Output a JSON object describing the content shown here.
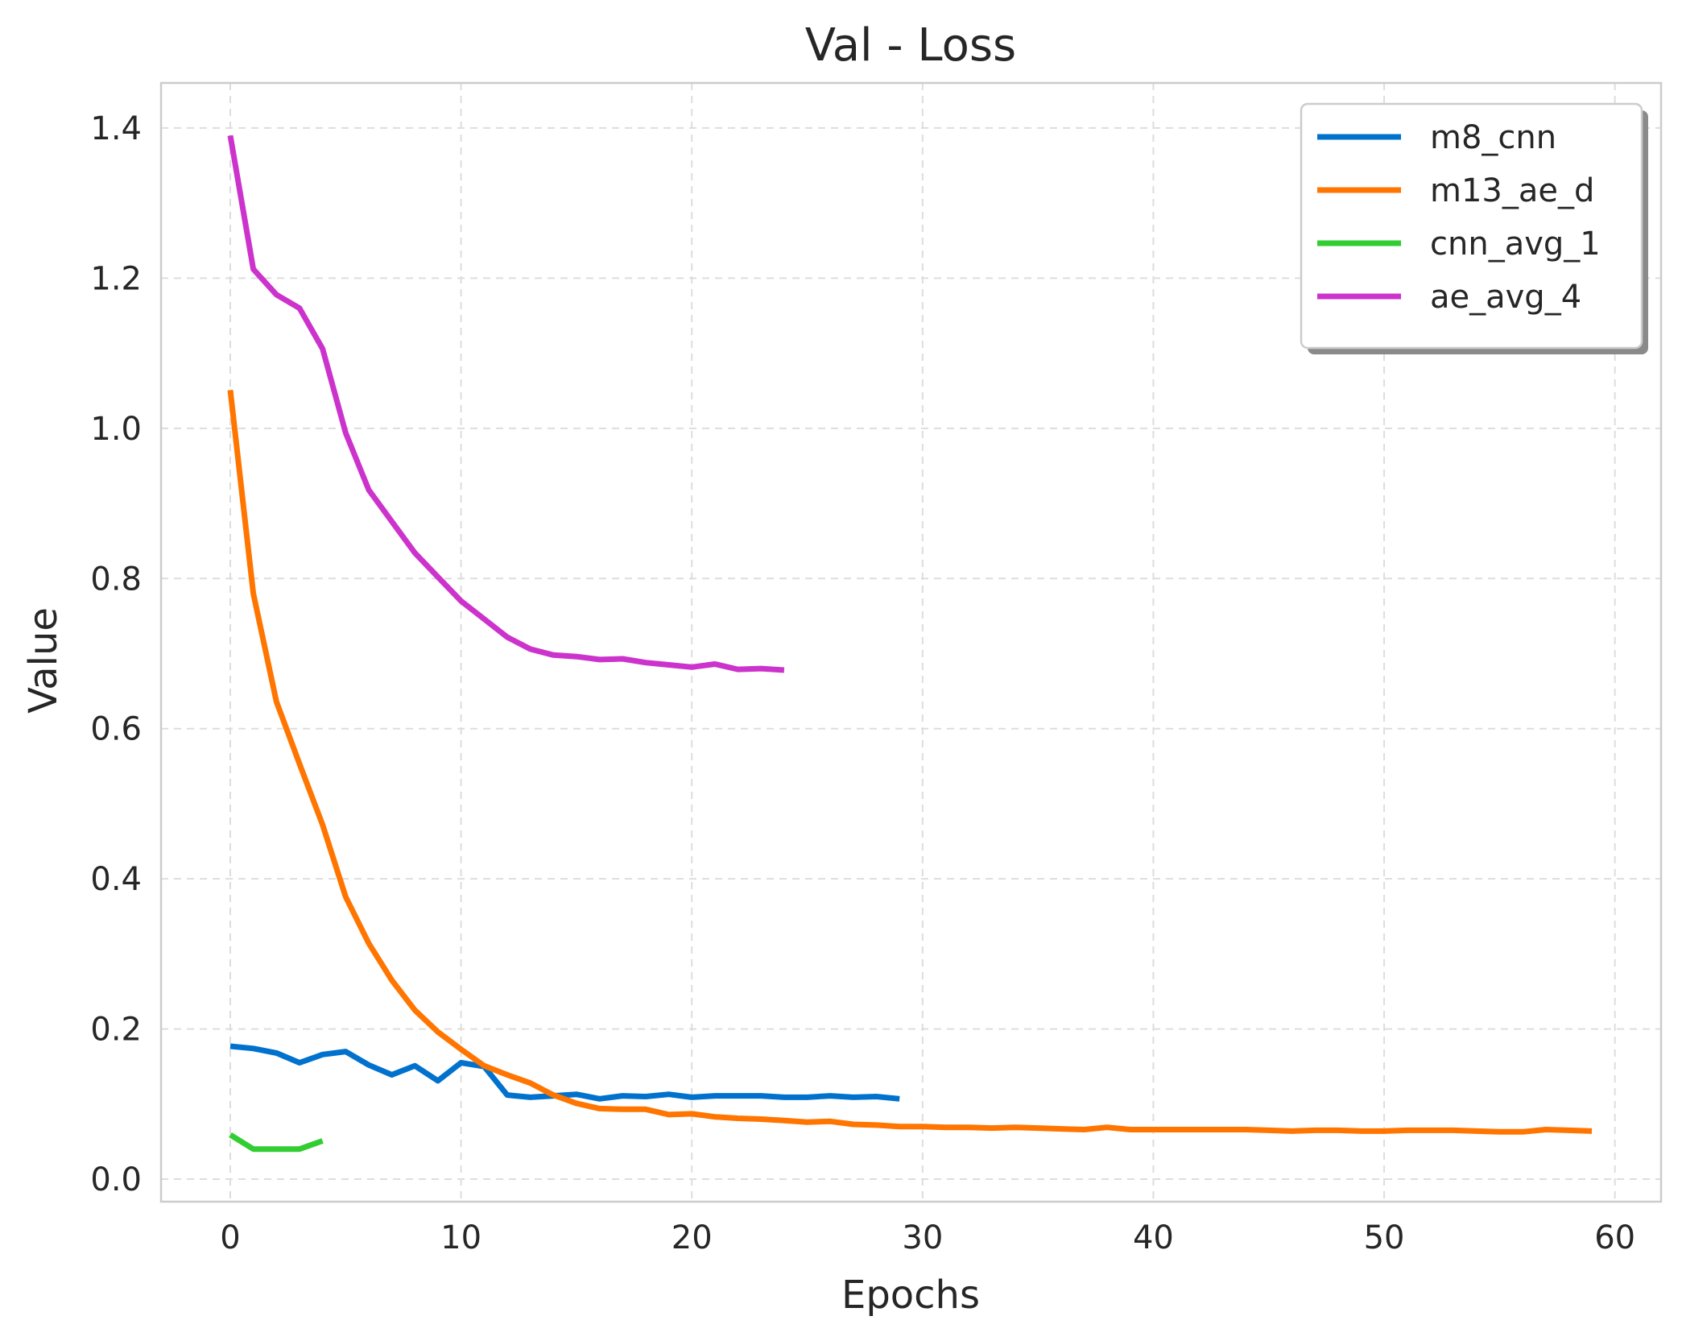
{
  "chart_data": {
    "type": "line",
    "title": "Val - Loss",
    "xlabel": "Epochs",
    "ylabel": "Value",
    "xlim": [
      -3,
      62
    ],
    "ylim": [
      -0.03,
      1.46
    ],
    "xticks": [
      0,
      10,
      20,
      30,
      40,
      50,
      60
    ],
    "yticks": [
      0.0,
      0.2,
      0.4,
      0.6,
      0.8,
      1.0,
      1.2,
      1.4
    ],
    "xtick_labels": [
      "0",
      "10",
      "20",
      "30",
      "40",
      "50",
      "60"
    ],
    "ytick_labels": [
      "0.0",
      "0.2",
      "0.4",
      "0.6",
      "0.8",
      "1.0",
      "1.2",
      "1.4"
    ],
    "grid": true,
    "legend_position": "top-right",
    "series": [
      {
        "name": "m8_cnn",
        "color": "#0072CE",
        "x": [
          0,
          1,
          2,
          3,
          4,
          5,
          6,
          7,
          8,
          9,
          10,
          11,
          12,
          13,
          14,
          15,
          16,
          17,
          18,
          19,
          20,
          21,
          22,
          23,
          24,
          25,
          26,
          27,
          28,
          29
        ],
        "y": [
          0.177,
          0.174,
          0.168,
          0.155,
          0.166,
          0.17,
          0.152,
          0.139,
          0.151,
          0.131,
          0.155,
          0.15,
          0.112,
          0.109,
          0.111,
          0.113,
          0.107,
          0.111,
          0.11,
          0.113,
          0.109,
          0.111,
          0.111,
          0.111,
          0.109,
          0.109,
          0.111,
          0.109,
          0.11,
          0.107
        ]
      },
      {
        "name": "m13_ae_d",
        "color": "#FF7500",
        "x": [
          0,
          1,
          2,
          3,
          4,
          5,
          6,
          7,
          8,
          9,
          10,
          11,
          12,
          13,
          14,
          15,
          16,
          17,
          18,
          19,
          20,
          21,
          22,
          23,
          24,
          25,
          26,
          27,
          28,
          29,
          30,
          31,
          32,
          33,
          34,
          35,
          36,
          37,
          38,
          39,
          40,
          41,
          42,
          43,
          44,
          45,
          46,
          47,
          48,
          49,
          50,
          51,
          52,
          53,
          54,
          55,
          56,
          57,
          58,
          59
        ],
        "y": [
          1.051,
          0.78,
          0.636,
          0.553,
          0.472,
          0.376,
          0.314,
          0.265,
          0.225,
          0.196,
          0.173,
          0.151,
          0.139,
          0.128,
          0.112,
          0.101,
          0.094,
          0.093,
          0.093,
          0.086,
          0.087,
          0.083,
          0.081,
          0.08,
          0.078,
          0.076,
          0.077,
          0.073,
          0.072,
          0.07,
          0.07,
          0.069,
          0.069,
          0.068,
          0.069,
          0.068,
          0.067,
          0.066,
          0.069,
          0.066,
          0.066,
          0.066,
          0.066,
          0.066,
          0.066,
          0.065,
          0.064,
          0.065,
          0.065,
          0.064,
          0.064,
          0.065,
          0.065,
          0.065,
          0.064,
          0.063,
          0.063,
          0.066,
          0.065,
          0.064
        ]
      },
      {
        "name": "cnn_avg_1",
        "color": "#32CD32",
        "x": [
          0,
          1,
          2,
          3,
          4
        ],
        "y": [
          0.059,
          0.04,
          0.04,
          0.04,
          0.051
        ]
      },
      {
        "name": "ae_avg_4",
        "color": "#CC33CC",
        "x": [
          0,
          1,
          2,
          3,
          4,
          5,
          6,
          7,
          8,
          9,
          10,
          11,
          12,
          13,
          14,
          15,
          16,
          17,
          18,
          19,
          20,
          21,
          22,
          23,
          24
        ],
        "y": [
          1.39,
          1.212,
          1.178,
          1.16,
          1.106,
          0.994,
          0.918,
          0.876,
          0.834,
          0.802,
          0.77,
          0.746,
          0.722,
          0.706,
          0.698,
          0.696,
          0.692,
          0.693,
          0.688,
          0.685,
          0.682,
          0.686,
          0.679,
          0.68,
          0.678
        ]
      }
    ]
  }
}
